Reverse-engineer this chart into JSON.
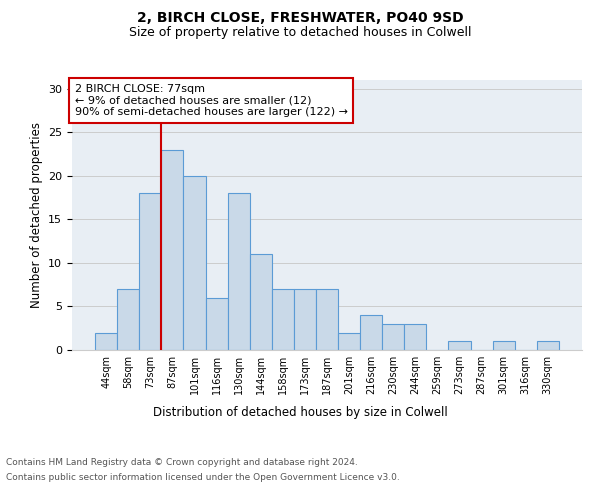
{
  "title1": "2, BIRCH CLOSE, FRESHWATER, PO40 9SD",
  "title2": "Size of property relative to detached houses in Colwell",
  "xlabel": "Distribution of detached houses by size in Colwell",
  "ylabel": "Number of detached properties",
  "categories": [
    "44sqm",
    "58sqm",
    "73sqm",
    "87sqm",
    "101sqm",
    "116sqm",
    "130sqm",
    "144sqm",
    "158sqm",
    "173sqm",
    "187sqm",
    "201sqm",
    "216sqm",
    "230sqm",
    "244sqm",
    "259sqm",
    "273sqm",
    "287sqm",
    "301sqm",
    "316sqm",
    "330sqm"
  ],
  "values": [
    2,
    7,
    18,
    23,
    20,
    6,
    18,
    11,
    7,
    7,
    7,
    2,
    4,
    3,
    3,
    0,
    1,
    0,
    1,
    0,
    1
  ],
  "bar_color": "#c9d9e8",
  "bar_edge_color": "#5b9bd5",
  "bar_edge_width": 0.8,
  "red_line_x": 2.5,
  "annotation_text": "2 BIRCH CLOSE: 77sqm\n← 9% of detached houses are smaller (12)\n90% of semi-detached houses are larger (122) →",
  "annotation_box_color": "#ffffff",
  "annotation_box_edge_color": "#cc0000",
  "ylim": [
    0,
    31
  ],
  "yticks": [
    0,
    5,
    10,
    15,
    20,
    25,
    30
  ],
  "grid_color": "#cccccc",
  "bg_color": "#e8eef4",
  "footer1": "Contains HM Land Registry data © Crown copyright and database right 2024.",
  "footer2": "Contains public sector information licensed under the Open Government Licence v3.0.",
  "title1_fontsize": 10,
  "title2_fontsize": 9,
  "tick_fontsize": 7,
  "ylabel_fontsize": 8.5,
  "xlabel_fontsize": 8.5,
  "annotation_fontsize": 8,
  "footer_fontsize": 6.5
}
